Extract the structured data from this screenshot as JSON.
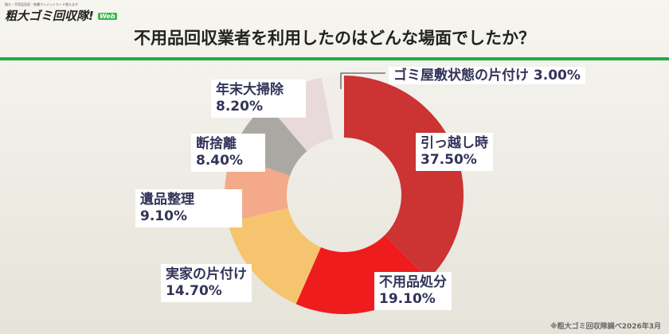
{
  "logo": {
    "tagline": "粗大・不用品回収・各種クレジットカード使えます",
    "name": "粗大ゴミ回収隊!",
    "badge": "Web"
  },
  "title": "不用品回収業者を利用したのはどんな場面でしたか？",
  "footnote": "※粗大ゴミ回収隊調べ2026年3月",
  "chart_data": {
    "type": "pie",
    "donut": true,
    "title": "不用品回収業者を利用したのはどんな場面でしたか？",
    "categories": [
      "引っ越し時",
      "不用品処分",
      "実家の片付け",
      "遺品整理",
      "断捨離",
      "年末大掃除",
      "ゴミ屋敷状態の片付け"
    ],
    "values": [
      37.5,
      19.1,
      14.7,
      9.1,
      8.4,
      8.2,
      3.0
    ],
    "labels": [
      "37.50%",
      "19.10%",
      "14.70%",
      "9.10%",
      "8.40%",
      "8.20%",
      "3.00%"
    ],
    "colors": [
      "#cc3333",
      "#ee1c1c",
      "#f6c46e",
      "#f3a98a",
      "#aba7a3",
      "#e8dada",
      "#f1eeea"
    ]
  }
}
